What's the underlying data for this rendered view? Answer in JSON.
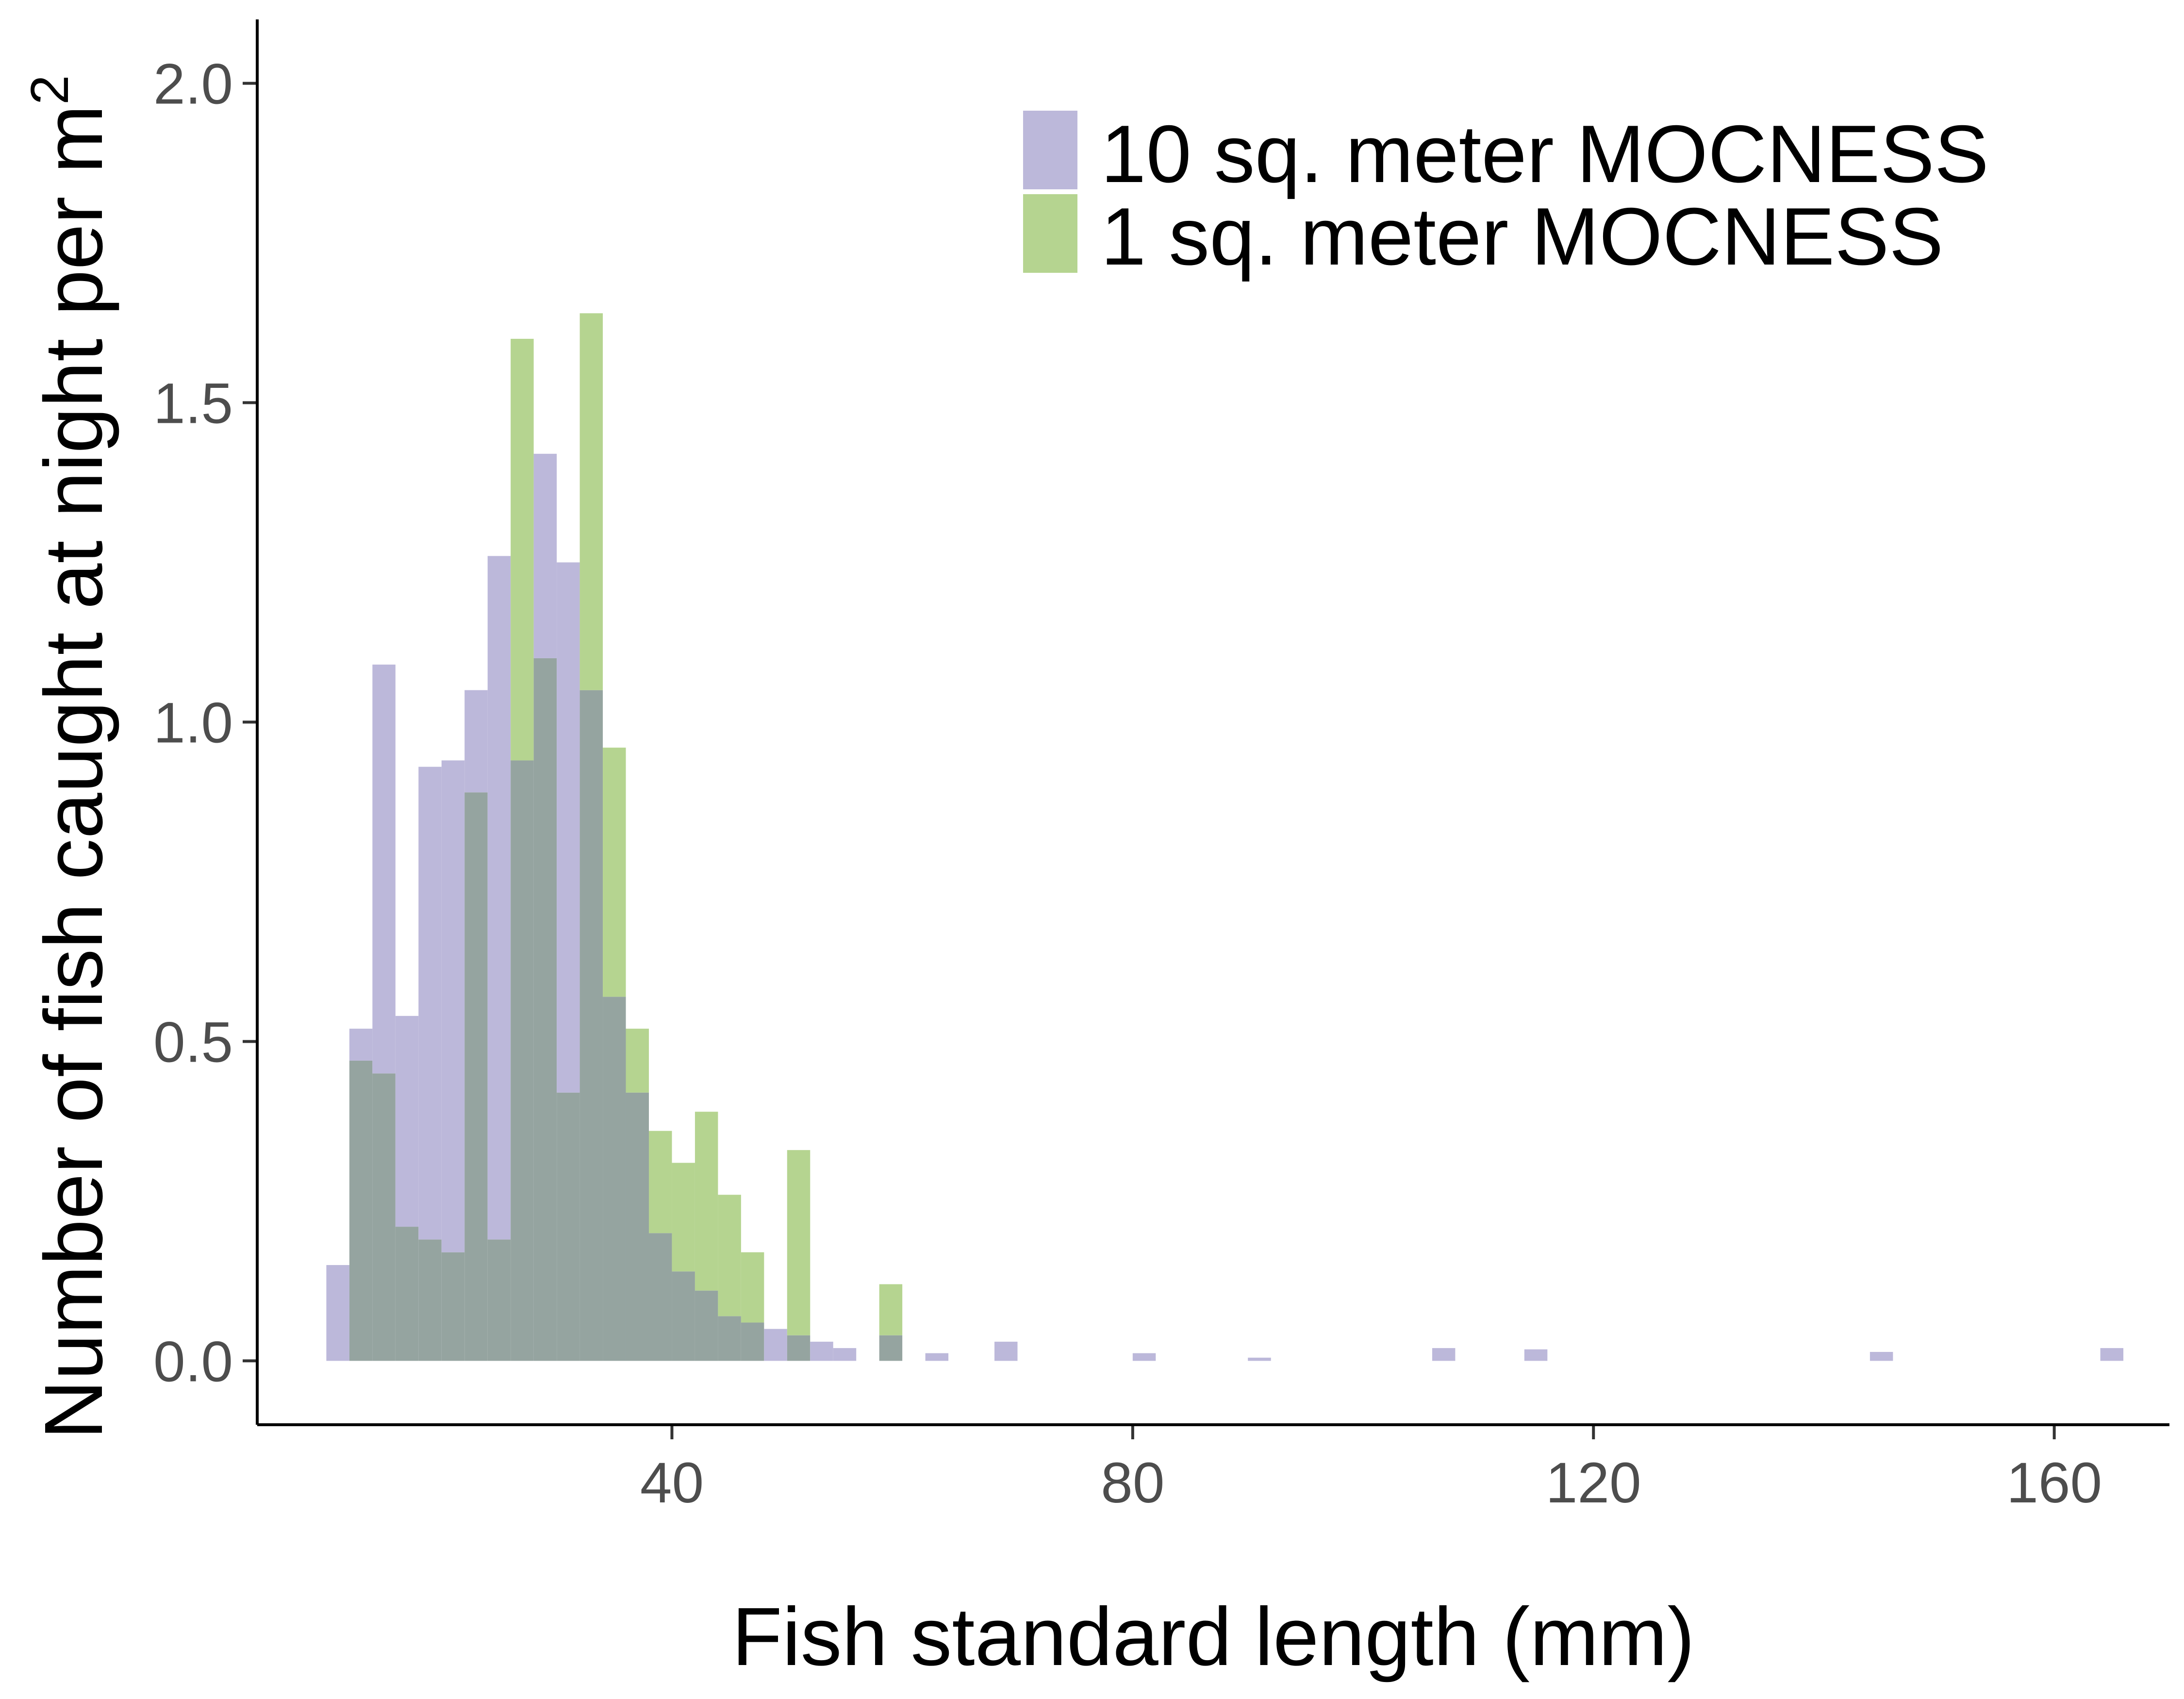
{
  "chart_data": {
    "type": "bar",
    "subtype": "overlapping-histogram",
    "xlabel": "Fish standard length (mm)",
    "ylabel": "Number of fish caught at night per m",
    "ylabel_superscript": "2",
    "xlim": [
      4,
      170
    ],
    "ylim": [
      -0.1,
      2.1
    ],
    "xticks": [
      40,
      80,
      120,
      160
    ],
    "xtick_labels": [
      "40",
      "80",
      "120",
      "160"
    ],
    "yticks": [
      0,
      0.5,
      1,
      1.5,
      2
    ],
    "ytick_labels": [
      "0.0",
      "0.5",
      "1.0",
      "1.5",
      "2.0"
    ],
    "bin_width": 2,
    "grid": false,
    "legend_position": "top-right",
    "overlap_color": "#95a4a0",
    "series": [
      {
        "name": "10 sq. meter MOCNESS",
        "color": "#bcb8da",
        "bins": [
          [
            10,
            0.15
          ],
          [
            12,
            0.52
          ],
          [
            14,
            1.09
          ],
          [
            16,
            0.54
          ],
          [
            18,
            0.93
          ],
          [
            20,
            0.94
          ],
          [
            22,
            1.05
          ],
          [
            24,
            1.26
          ],
          [
            26,
            0.94
          ],
          [
            28,
            1.42
          ],
          [
            30,
            1.25
          ],
          [
            32,
            1.05
          ],
          [
            34,
            0.57
          ],
          [
            36,
            0.42
          ],
          [
            38,
            0.2
          ],
          [
            40,
            0.14
          ],
          [
            42,
            0.11
          ],
          [
            44,
            0.07
          ],
          [
            46,
            0.06
          ],
          [
            48,
            0.05
          ],
          [
            50,
            0.04
          ],
          [
            52,
            0.03
          ],
          [
            54,
            0.02
          ],
          [
            58,
            0.04
          ],
          [
            62,
            0.012
          ],
          [
            68,
            0.03
          ],
          [
            80,
            0.012
          ],
          [
            90,
            0.005
          ],
          [
            106,
            0.02
          ],
          [
            114,
            0.018
          ],
          [
            144,
            0.014
          ],
          [
            164,
            0.02
          ]
        ]
      },
      {
        "name": "1 sq. meter MOCNESS",
        "color": "#b5d490",
        "bins": [
          [
            12,
            0.47
          ],
          [
            14,
            0.45
          ],
          [
            16,
            0.21
          ],
          [
            18,
            0.19
          ],
          [
            20,
            0.17
          ],
          [
            22,
            0.89
          ],
          [
            24,
            0.19
          ],
          [
            26,
            1.6
          ],
          [
            28,
            1.1
          ],
          [
            30,
            0.42
          ],
          [
            32,
            1.64
          ],
          [
            34,
            0.96
          ],
          [
            36,
            0.52
          ],
          [
            38,
            0.36
          ],
          [
            40,
            0.31
          ],
          [
            42,
            0.39
          ],
          [
            44,
            0.26
          ],
          [
            46,
            0.17
          ],
          [
            48,
            0.0
          ],
          [
            50,
            0.33
          ],
          [
            58,
            0.12
          ]
        ]
      }
    ]
  }
}
